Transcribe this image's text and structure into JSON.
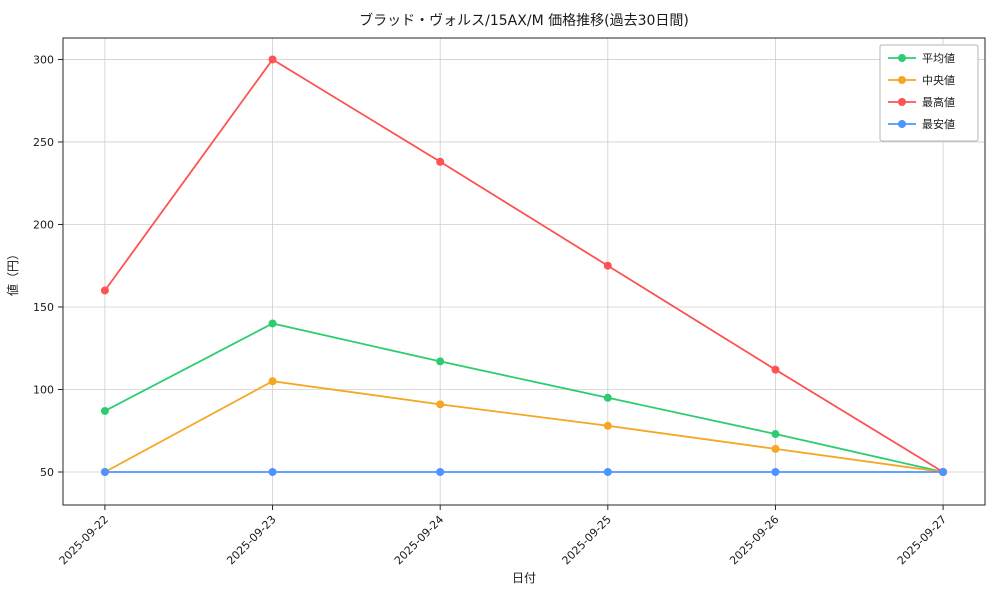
{
  "chart_data": {
    "type": "line",
    "title": "ブラッド・ヴォルス/15AX/M 価格推移(過去30日間)",
    "xlabel": "日付",
    "ylabel": "値（円）",
    "categories": [
      "2025-09-22",
      "2025-09-23",
      "2025-09-24",
      "2025-09-25",
      "2025-09-26",
      "2025-09-27"
    ],
    "series": [
      {
        "name": "平均値",
        "color": "#2ecc71",
        "values": [
          87,
          140,
          117,
          95,
          73,
          50
        ]
      },
      {
        "name": "中央値",
        "color": "#f5a623",
        "values": [
          50,
          105,
          91,
          78,
          64,
          50
        ]
      },
      {
        "name": "最高値",
        "color": "#ff5252",
        "values": [
          160,
          300,
          238,
          175,
          112,
          50
        ]
      },
      {
        "name": "最安値",
        "color": "#4d94ff",
        "values": [
          50,
          50,
          50,
          50,
          50,
          50
        ]
      }
    ],
    "yticks": [
      50,
      100,
      150,
      200,
      250,
      300
    ],
    "ylim": [
      30,
      313
    ],
    "grid": true,
    "legend_position": "upper right",
    "colors": {
      "grid": "#cfcfcf",
      "frame": "#262626",
      "legend_border": "#b5b5b5",
      "background": "#ffffff"
    }
  }
}
